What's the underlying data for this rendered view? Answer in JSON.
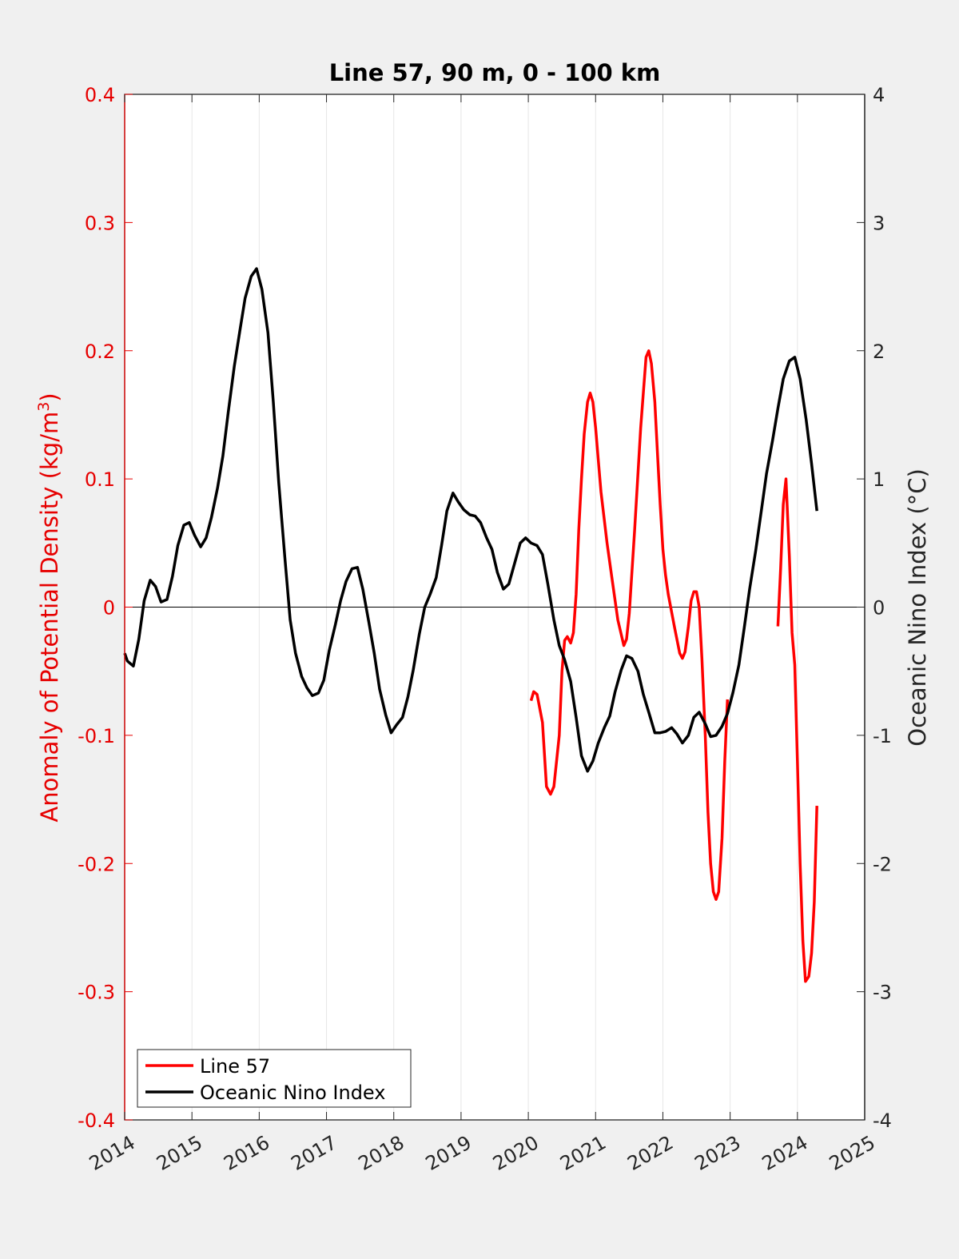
{
  "chart_data": {
    "type": "line",
    "title": "Line 57, 90 m, 0 - 100 km",
    "ylabel_left_prefix": "Anomaly of Potential Density (kg/m",
    "ylabel_left_sup": "3",
    "ylabel_left_suffix": ")",
    "ylabel_right": "Oceanic Nino Index (°C)",
    "xlim": [
      2014,
      2025
    ],
    "ylim_left": [
      -0.4,
      0.4
    ],
    "ylim_right": [
      -4,
      4
    ],
    "x_ticks": [
      "2014",
      "2015",
      "2016",
      "2017",
      "2018",
      "2019",
      "2020",
      "2021",
      "2022",
      "2023",
      "2024",
      "2025"
    ],
    "y_ticks_left": [
      "0.4",
      "0.3",
      "0.2",
      "0.1",
      "0",
      "-0.1",
      "-0.2",
      "-0.3",
      "-0.4"
    ],
    "y_ticks_right": [
      "4",
      "3",
      "2",
      "1",
      "0",
      "-1",
      "-2",
      "-3",
      "-4"
    ],
    "grid": "vertical",
    "zero_line": true,
    "legend_position": "bottom-left",
    "colors": {
      "line57": "#ff0000",
      "oni": "#000000",
      "left_axis": "#e60000",
      "right_axis": "#262626"
    },
    "series": [
      {
        "name": "Line 57",
        "axis": "left",
        "segments": [
          [
            [
              2020.04,
              -0.073
            ],
            [
              2020.08,
              -0.066
            ],
            [
              2020.13,
              -0.068
            ],
            [
              2020.21,
              -0.09
            ],
            [
              2020.27,
              -0.14
            ],
            [
              2020.33,
              -0.146
            ],
            [
              2020.38,
              -0.14
            ],
            [
              2020.46,
              -0.1
            ],
            [
              2020.5,
              -0.05
            ],
            [
              2020.54,
              -0.026
            ],
            [
              2020.58,
              -0.023
            ],
            [
              2020.63,
              -0.028
            ],
            [
              2020.67,
              -0.02
            ],
            [
              2020.71,
              0.01
            ],
            [
              2020.75,
              0.06
            ],
            [
              2020.79,
              0.1
            ],
            [
              2020.83,
              0.135
            ],
            [
              2020.88,
              0.16
            ],
            [
              2020.92,
              0.167
            ],
            [
              2020.96,
              0.16
            ],
            [
              2021.0,
              0.14
            ],
            [
              2021.04,
              0.115
            ],
            [
              2021.08,
              0.09
            ],
            [
              2021.17,
              0.05
            ],
            [
              2021.25,
              0.02
            ],
            [
              2021.33,
              -0.01
            ],
            [
              2021.42,
              -0.03
            ],
            [
              2021.46,
              -0.025
            ],
            [
              2021.5,
              -0.005
            ],
            [
              2021.58,
              0.06
            ],
            [
              2021.67,
              0.14
            ],
            [
              2021.75,
              0.195
            ],
            [
              2021.79,
              0.2
            ],
            [
              2021.83,
              0.19
            ],
            [
              2021.88,
              0.16
            ],
            [
              2021.92,
              0.12
            ],
            [
              2021.96,
              0.08
            ],
            [
              2022.0,
              0.045
            ],
            [
              2022.04,
              0.025
            ],
            [
              2022.08,
              0.01
            ],
            [
              2022.17,
              -0.015
            ],
            [
              2022.25,
              -0.036
            ],
            [
              2022.29,
              -0.04
            ],
            [
              2022.33,
              -0.035
            ],
            [
              2022.38,
              -0.015
            ],
            [
              2022.42,
              0.005
            ],
            [
              2022.46,
              0.012
            ],
            [
              2022.5,
              0.012
            ],
            [
              2022.54,
              0.0
            ],
            [
              2022.58,
              -0.04
            ],
            [
              2022.63,
              -0.1
            ],
            [
              2022.67,
              -0.16
            ],
            [
              2022.71,
              -0.2
            ],
            [
              2022.75,
              -0.222
            ],
            [
              2022.79,
              -0.228
            ],
            [
              2022.83,
              -0.222
            ],
            [
              2022.88,
              -0.18
            ],
            [
              2022.92,
              -0.12
            ],
            [
              2022.96,
              -0.072
            ]
          ],
          [
            [
              2023.71,
              -0.015
            ],
            [
              2023.75,
              0.03
            ],
            [
              2023.79,
              0.08
            ],
            [
              2023.83,
              0.1
            ],
            [
              2023.88,
              0.04
            ],
            [
              2023.92,
              -0.02
            ],
            [
              2023.96,
              -0.045
            ],
            [
              2024.0,
              -0.12
            ],
            [
              2024.04,
              -0.2
            ],
            [
              2024.08,
              -0.26
            ],
            [
              2024.12,
              -0.292
            ],
            [
              2024.17,
              -0.288
            ],
            [
              2024.21,
              -0.27
            ],
            [
              2024.25,
              -0.23
            ],
            [
              2024.29,
              -0.155
            ]
          ]
        ]
      },
      {
        "name": "Oceanic Nino Index",
        "axis": "right",
        "segments": [
          [
            [
              2014.0,
              -0.36
            ],
            [
              2014.04,
              -0.42
            ],
            [
              2014.13,
              -0.46
            ],
            [
              2014.21,
              -0.25
            ],
            [
              2014.29,
              0.05
            ],
            [
              2014.38,
              0.21
            ],
            [
              2014.46,
              0.16
            ],
            [
              2014.54,
              0.04
            ],
            [
              2014.63,
              0.06
            ],
            [
              2014.71,
              0.24
            ],
            [
              2014.79,
              0.48
            ],
            [
              2014.88,
              0.64
            ],
            [
              2014.96,
              0.66
            ],
            [
              2015.04,
              0.56
            ],
            [
              2015.13,
              0.47
            ],
            [
              2015.21,
              0.54
            ],
            [
              2015.29,
              0.7
            ],
            [
              2015.38,
              0.93
            ],
            [
              2015.46,
              1.18
            ],
            [
              2015.54,
              1.52
            ],
            [
              2015.63,
              1.88
            ],
            [
              2015.71,
              2.15
            ],
            [
              2015.79,
              2.41
            ],
            [
              2015.88,
              2.58
            ],
            [
              2015.96,
              2.64
            ],
            [
              2016.04,
              2.48
            ],
            [
              2016.13,
              2.14
            ],
            [
              2016.21,
              1.6
            ],
            [
              2016.29,
              0.97
            ],
            [
              2016.38,
              0.39
            ],
            [
              2016.46,
              -0.1
            ],
            [
              2016.54,
              -0.36
            ],
            [
              2016.63,
              -0.54
            ],
            [
              2016.71,
              -0.63
            ],
            [
              2016.79,
              -0.69
            ],
            [
              2016.88,
              -0.67
            ],
            [
              2016.96,
              -0.57
            ],
            [
              2017.04,
              -0.34
            ],
            [
              2017.13,
              -0.14
            ],
            [
              2017.21,
              0.05
            ],
            [
              2017.29,
              0.2
            ],
            [
              2017.38,
              0.3
            ],
            [
              2017.46,
              0.31
            ],
            [
              2017.54,
              0.14
            ],
            [
              2017.63,
              -0.12
            ],
            [
              2017.71,
              -0.36
            ],
            [
              2017.79,
              -0.64
            ],
            [
              2017.88,
              -0.84
            ],
            [
              2017.96,
              -0.98
            ],
            [
              2018.04,
              -0.92
            ],
            [
              2018.13,
              -0.86
            ],
            [
              2018.21,
              -0.7
            ],
            [
              2018.29,
              -0.49
            ],
            [
              2018.38,
              -0.21
            ],
            [
              2018.46,
              0.0
            ],
            [
              2018.54,
              0.1
            ],
            [
              2018.63,
              0.23
            ],
            [
              2018.71,
              0.48
            ],
            [
              2018.79,
              0.75
            ],
            [
              2018.88,
              0.89
            ],
            [
              2018.96,
              0.82
            ],
            [
              2019.04,
              0.76
            ],
            [
              2019.13,
              0.72
            ],
            [
              2019.21,
              0.71
            ],
            [
              2019.29,
              0.66
            ],
            [
              2019.38,
              0.54
            ],
            [
              2019.46,
              0.45
            ],
            [
              2019.54,
              0.27
            ],
            [
              2019.63,
              0.14
            ],
            [
              2019.71,
              0.18
            ],
            [
              2019.79,
              0.33
            ],
            [
              2019.88,
              0.5
            ],
            [
              2019.96,
              0.54
            ],
            [
              2020.04,
              0.5
            ],
            [
              2020.13,
              0.48
            ],
            [
              2020.21,
              0.41
            ],
            [
              2020.29,
              0.18
            ],
            [
              2020.38,
              -0.1
            ],
            [
              2020.46,
              -0.3
            ],
            [
              2020.54,
              -0.41
            ],
            [
              2020.63,
              -0.58
            ],
            [
              2020.71,
              -0.86
            ],
            [
              2020.79,
              -1.16
            ],
            [
              2020.88,
              -1.28
            ],
            [
              2020.96,
              -1.2
            ],
            [
              2021.04,
              -1.06
            ],
            [
              2021.13,
              -0.94
            ],
            [
              2021.21,
              -0.85
            ],
            [
              2021.29,
              -0.66
            ],
            [
              2021.38,
              -0.49
            ],
            [
              2021.46,
              -0.38
            ],
            [
              2021.54,
              -0.4
            ],
            [
              2021.63,
              -0.5
            ],
            [
              2021.71,
              -0.68
            ],
            [
              2021.79,
              -0.82
            ],
            [
              2021.88,
              -0.98
            ],
            [
              2021.96,
              -0.98
            ],
            [
              2022.04,
              -0.97
            ],
            [
              2022.13,
              -0.94
            ],
            [
              2022.21,
              -0.99
            ],
            [
              2022.29,
              -1.06
            ],
            [
              2022.38,
              -1.0
            ],
            [
              2022.46,
              -0.86
            ],
            [
              2022.54,
              -0.82
            ],
            [
              2022.63,
              -0.91
            ],
            [
              2022.71,
              -1.01
            ],
            [
              2022.79,
              -1.0
            ],
            [
              2022.88,
              -0.93
            ],
            [
              2022.96,
              -0.83
            ],
            [
              2023.04,
              -0.67
            ],
            [
              2023.13,
              -0.45
            ],
            [
              2023.21,
              -0.16
            ],
            [
              2023.29,
              0.14
            ],
            [
              2023.38,
              0.44
            ],
            [
              2023.46,
              0.74
            ],
            [
              2023.54,
              1.04
            ],
            [
              2023.63,
              1.3
            ],
            [
              2023.71,
              1.55
            ],
            [
              2023.79,
              1.78
            ],
            [
              2023.88,
              1.92
            ],
            [
              2023.96,
              1.95
            ],
            [
              2024.04,
              1.78
            ],
            [
              2024.13,
              1.46
            ],
            [
              2024.21,
              1.12
            ],
            [
              2024.29,
              0.75
            ]
          ]
        ]
      }
    ]
  }
}
